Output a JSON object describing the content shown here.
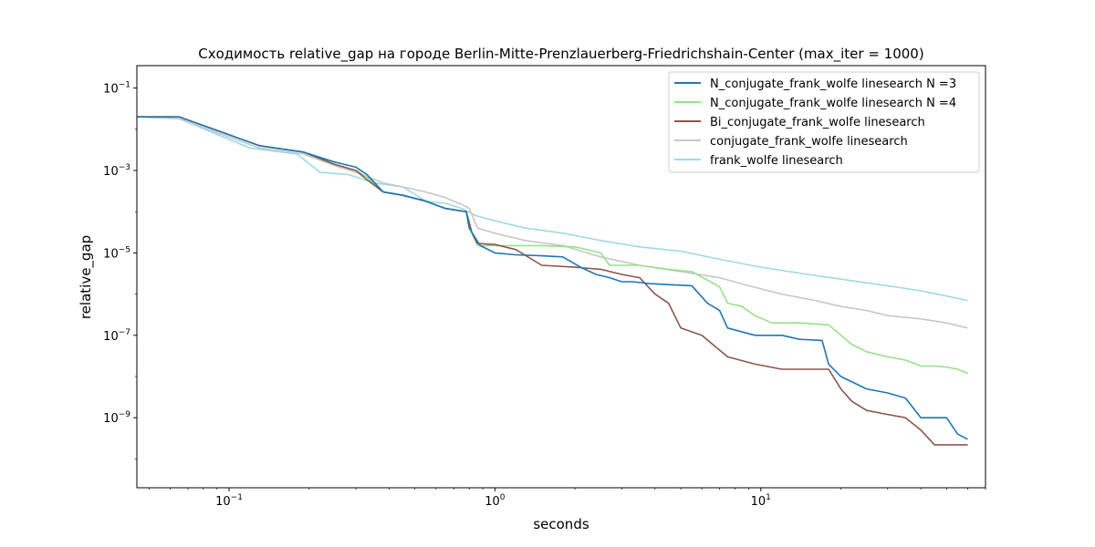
{
  "chart_data": {
    "type": "line",
    "title": "Сходимость relative_gap на городе Berlin-Mitte-Prenzlauerberg-Friedrichshain-Center  (max_iter = 1000)",
    "xlabel": "seconds",
    "ylabel": "relative_gap",
    "xscale": "log",
    "yscale": "log",
    "xlim": [
      0.045,
      70
    ],
    "ylim": [
      2e-11,
      0.35
    ],
    "xticks": [
      {
        "value": 0.1,
        "base": "10",
        "exp": "−1"
      },
      {
        "value": 1,
        "base": "10",
        "exp": "0"
      },
      {
        "value": 10,
        "base": "10",
        "exp": "1"
      }
    ],
    "yticks": [
      {
        "value": 1e-09,
        "base": "10",
        "exp": "−9"
      },
      {
        "value": 1e-07,
        "base": "10",
        "exp": "−7"
      },
      {
        "value": 1e-05,
        "base": "10",
        "exp": "−5"
      },
      {
        "value": 0.001,
        "base": "10",
        "exp": "−3"
      },
      {
        "value": 0.1,
        "base": "10",
        "exp": "−1"
      }
    ],
    "grid": false,
    "legend_position": "top-right",
    "series": [
      {
        "name": "N_conjugate_frank_wolfe linesearch N =3",
        "color": "#1f77b4",
        "x": [
          0.045,
          0.065,
          0.13,
          0.19,
          0.25,
          0.3,
          0.33,
          0.38,
          0.45,
          0.55,
          0.65,
          0.78,
          0.8,
          0.88,
          1.0,
          1.2,
          1.5,
          1.8,
          2.1,
          2.4,
          2.7,
          3.0,
          3.3,
          3.8,
          4.5,
          5.5,
          6.3,
          7.0,
          7.5,
          9.5,
          12,
          14,
          17,
          18,
          20,
          25,
          30,
          35,
          40,
          45,
          50,
          55,
          60
        ],
        "y": [
          0.02,
          0.02,
          0.004,
          0.0028,
          0.0016,
          0.0012,
          0.0008,
          0.0003,
          0.00025,
          0.00018,
          0.00012,
          0.0001,
          4e-05,
          1.5e-05,
          1e-05,
          9e-06,
          8.5e-06,
          8e-06,
          4.5e-06,
          3e-06,
          2.5e-06,
          2e-06,
          2e-06,
          1.8e-06,
          1.7e-06,
          1.6e-06,
          6e-07,
          4e-07,
          1.5e-07,
          1e-07,
          1e-07,
          8e-08,
          7.5e-08,
          2e-08,
          1e-08,
          5e-09,
          4e-09,
          3e-09,
          1e-09,
          1e-09,
          1e-09,
          4e-10,
          3e-10
        ]
      },
      {
        "name": "N_conjugate_frank_wolfe linesearch N =4",
        "color": "#98df8a",
        "x": [
          0.045,
          0.065,
          0.13,
          0.19,
          0.25,
          0.3,
          0.33,
          0.38,
          0.45,
          0.55,
          0.65,
          0.78,
          0.82,
          0.86,
          1.0,
          1.5,
          2.0,
          2.5,
          2.7,
          3.5,
          4.5,
          5.5,
          7.0,
          7.5,
          8.5,
          9.5,
          11,
          14,
          18,
          22,
          25,
          30,
          35,
          40,
          45,
          50,
          55,
          60
        ],
        "y": [
          0.02,
          0.02,
          0.004,
          0.0028,
          0.0014,
          0.001,
          0.0007,
          0.0003,
          0.00025,
          0.00018,
          0.00012,
          0.0001,
          3e-05,
          1.5e-05,
          1.5e-05,
          1.5e-05,
          1.4e-05,
          1e-05,
          5e-06,
          5e-06,
          4e-06,
          3.5e-06,
          1.5e-06,
          6e-07,
          5e-07,
          3e-07,
          2e-07,
          2e-07,
          1.8e-07,
          6e-08,
          4e-08,
          3e-08,
          2.5e-08,
          1.8e-08,
          1.8e-08,
          1.7e-08,
          1.5e-08,
          1.2e-08
        ]
      },
      {
        "name": "Bi_conjugate_frank_wolfe linesearch",
        "color": "#8c564b",
        "x": [
          0.045,
          0.065,
          0.13,
          0.19,
          0.25,
          0.3,
          0.33,
          0.38,
          0.45,
          0.55,
          0.65,
          0.78,
          0.82,
          0.86,
          1.0,
          1.2,
          1.5,
          2.0,
          2.5,
          3.0,
          3.5,
          4.0,
          4.5,
          5.0,
          6.0,
          7.5,
          9.5,
          12,
          16,
          18,
          20,
          22,
          25,
          30,
          35,
          40,
          45,
          50,
          60
        ],
        "y": [
          0.02,
          0.02,
          0.004,
          0.0028,
          0.0014,
          0.001,
          0.0006,
          0.0003,
          0.00025,
          0.00018,
          0.00012,
          0.0001,
          3e-05,
          1.7e-05,
          1.6e-05,
          1.2e-05,
          5e-06,
          4.5e-06,
          4e-06,
          3e-06,
          2.5e-06,
          1e-06,
          6e-07,
          1.5e-07,
          1e-07,
          3e-08,
          2e-08,
          1.5e-08,
          1.5e-08,
          1.5e-08,
          5e-09,
          2.5e-09,
          1.5e-09,
          1.2e-09,
          1e-09,
          5e-10,
          2.2e-10,
          2.2e-10,
          2.2e-10
        ]
      },
      {
        "name": "conjugate_frank_wolfe linesearch",
        "color": "#c7c7c7",
        "x": [
          0.045,
          0.065,
          0.13,
          0.19,
          0.25,
          0.3,
          0.38,
          0.45,
          0.55,
          0.65,
          0.75,
          0.8,
          0.86,
          1.0,
          1.3,
          1.8,
          2.5,
          3.5,
          5.0,
          7.0,
          9.0,
          12,
          16,
          20,
          25,
          30,
          40,
          50,
          60
        ],
        "y": [
          0.02,
          0.018,
          0.0035,
          0.0025,
          0.0013,
          0.0009,
          0.0005,
          0.0004,
          0.0003,
          0.00022,
          0.00015,
          0.00012,
          4e-05,
          3e-05,
          2e-05,
          1.5e-05,
          8e-06,
          5e-06,
          3.5e-06,
          2.5e-06,
          1.6e-06,
          1e-06,
          7e-07,
          5e-07,
          4e-07,
          3e-07,
          2.5e-07,
          2e-07,
          1.5e-07
        ]
      },
      {
        "name": "frank_wolfe linesearch",
        "color": "#9edae5",
        "x": [
          0.045,
          0.065,
          0.12,
          0.18,
          0.22,
          0.28,
          0.35,
          0.45,
          0.55,
          0.65,
          0.75,
          0.85,
          1.0,
          1.3,
          1.8,
          2.5,
          3.5,
          5.0,
          7.0,
          10,
          15,
          20,
          30,
          40,
          50,
          60
        ],
        "y": [
          0.02,
          0.018,
          0.0035,
          0.0025,
          0.0009,
          0.0008,
          0.0005,
          0.0004,
          0.00018,
          0.00016,
          0.00012,
          8e-05,
          6e-05,
          4e-05,
          3e-05,
          2e-05,
          1.4e-05,
          1.1e-05,
          7e-06,
          4.5e-06,
          3e-06,
          2.3e-06,
          1.6e-06,
          1.2e-06,
          9e-07,
          7e-07
        ]
      }
    ]
  }
}
